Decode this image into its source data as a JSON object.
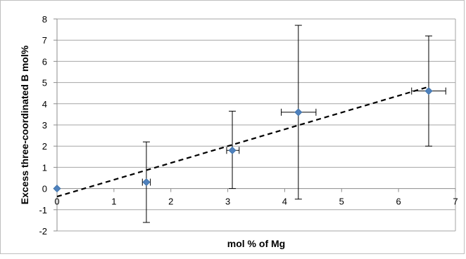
{
  "chart_data": {
    "type": "scatter",
    "title": "",
    "xlabel": "mol % of Mg",
    "ylabel": "Excess three-coordinated B mol%",
    "xlim": [
      0,
      7
    ],
    "ylim": [
      -2,
      8
    ],
    "x_ticks": [
      0,
      1,
      2,
      3,
      4,
      5,
      6,
      7
    ],
    "y_ticks": [
      -2,
      -1,
      0,
      1,
      2,
      3,
      4,
      5,
      6,
      7,
      8
    ],
    "grid": "horizontal",
    "legend": "none",
    "series": [
      {
        "marker": "diamond",
        "color": "#4f81bd",
        "points": [
          {
            "x": 0.0,
            "y": 0.0,
            "y_low": 0.0,
            "y_high": 0.0,
            "x_low": 0.0,
            "x_high": 0.0
          },
          {
            "x": 1.57,
            "y": 0.3,
            "y_low": -1.6,
            "y_high": 2.2,
            "x_low": 1.5,
            "x_high": 1.64
          },
          {
            "x": 3.08,
            "y": 1.8,
            "y_low": 0.0,
            "y_high": 3.65,
            "x_low": 2.98,
            "x_high": 3.2
          },
          {
            "x": 4.24,
            "y": 3.6,
            "y_low": -0.5,
            "y_high": 7.7,
            "x_low": 3.94,
            "x_high": 4.55
          },
          {
            "x": 6.53,
            "y": 4.6,
            "y_low": 2.0,
            "y_high": 7.2,
            "x_low": 6.23,
            "x_high": 6.83
          }
        ]
      }
    ],
    "trendline": {
      "style": "dashed",
      "color": "#000000",
      "x": [
        0,
        6.53
      ],
      "y": [
        -0.38,
        4.8
      ]
    }
  }
}
